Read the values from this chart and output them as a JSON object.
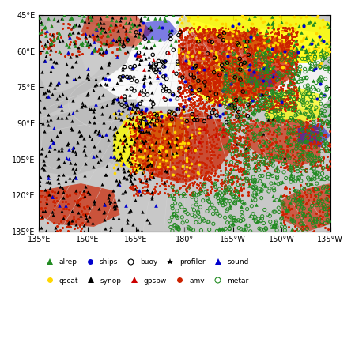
{
  "title": "",
  "xlim": [
    135,
    225
  ],
  "ylim_top": 45,
  "ylim_bottom": 135,
  "xticks": [
    135,
    150,
    165,
    180,
    195,
    210,
    225
  ],
  "xticklabels": [
    "135°E",
    "150°E",
    "165°E",
    "180°",
    "165°W",
    "150°W",
    "135°W"
  ],
  "yticks": [
    45,
    60,
    75,
    90,
    105,
    120,
    135
  ],
  "yticklabels": [
    "45°E",
    "60°E",
    "75°E",
    "90°E",
    "105°E",
    "120°E",
    "135°E"
  ],
  "legend_entries": [
    {
      "label": "alrep",
      "marker": "^",
      "facecolor": "#228B22",
      "edgecolor": "#228B22",
      "markersize": 6
    },
    {
      "label": "ships",
      "marker": "o",
      "facecolor": "#0000CD",
      "edgecolor": "#0000CD",
      "markersize": 5
    },
    {
      "label": "buoy",
      "marker": "o",
      "facecolor": "none",
      "edgecolor": "black",
      "markersize": 5
    },
    {
      "label": "profiler",
      "marker": "*",
      "facecolor": "black",
      "edgecolor": "black",
      "markersize": 6
    },
    {
      "label": "sound",
      "marker": "^",
      "facecolor": "#0000CD",
      "edgecolor": "#0000CD",
      "markersize": 6
    },
    {
      "label": "qscat",
      "marker": "o",
      "facecolor": "#FFD700",
      "edgecolor": "#FFD700",
      "markersize": 5
    },
    {
      "label": "synop",
      "marker": "^",
      "facecolor": "black",
      "edgecolor": "black",
      "markersize": 6
    },
    {
      "label": "gpspw",
      "marker": "^",
      "facecolor": "#CC0000",
      "edgecolor": "#CC0000",
      "markersize": 6
    },
    {
      "label": "amv",
      "marker": "o",
      "facecolor": "#CC2200",
      "edgecolor": "#CC2200",
      "markersize": 5
    },
    {
      "label": "metar",
      "marker": "o",
      "facecolor": "none",
      "edgecolor": "#228B22",
      "markersize": 5
    }
  ],
  "background_color": "#C8C8C8",
  "seed": 42
}
